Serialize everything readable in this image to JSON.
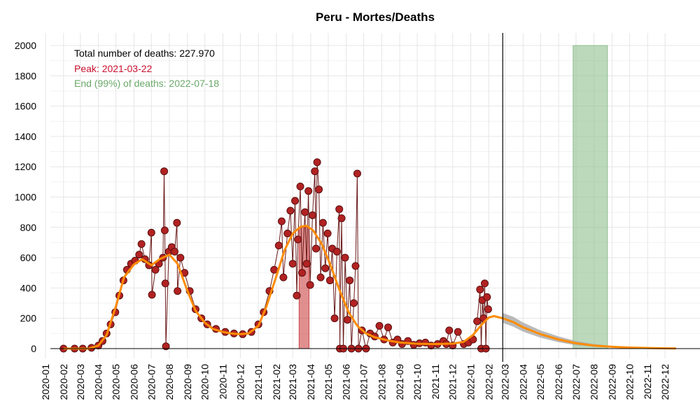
{
  "chart_data": {
    "type": "scatter",
    "title": "Peru - Mortes/Deaths",
    "xlabel": "",
    "ylabel": "",
    "xlim": [
      "2020-01-01",
      "2022-12-31"
    ],
    "ylim": [
      0,
      2000
    ],
    "y_ticks": [
      0,
      200,
      400,
      600,
      800,
      1000,
      1200,
      1400,
      1600,
      1800,
      2000
    ],
    "x_ticks": [
      "2020-01",
      "2020-02",
      "2020-03",
      "2020-04",
      "2020-05",
      "2020-06",
      "2020-07",
      "2020-08",
      "2020-09",
      "2020-10",
      "2020-11",
      "2020-12",
      "2021-01",
      "2021-02",
      "2021-03",
      "2021-04",
      "2021-05",
      "2021-06",
      "2021-07",
      "2021-08",
      "2021-09",
      "2021-10",
      "2021-11",
      "2021-12",
      "2022-01",
      "2022-02",
      "2022-03",
      "2022-04",
      "2022-05",
      "2022-06",
      "2022-07",
      "2022-08",
      "2022-09",
      "2022-10",
      "2022-11",
      "2022-12"
    ],
    "grid": true,
    "annotations": {
      "total": {
        "text": "Total number of deaths: 227.970",
        "color": "#000000"
      },
      "peak": {
        "text": "Peak: 2021-03-22",
        "color": "#c8102e"
      },
      "end": {
        "text": "End (99%) of deaths: 2022-07-18",
        "color": "#6aa86a"
      }
    },
    "current_date": "2022-02-25",
    "peak_band": {
      "start": "2021-03-12",
      "end": "2021-03-29",
      "top": 800,
      "color": "#cc4444"
    },
    "end_band": {
      "start": "2022-06-26",
      "end": "2022-08-24",
      "top": 2000,
      "color": "#8fbf8f"
    },
    "colors": {
      "points": "#b22222",
      "point_edge": "#5a1010",
      "line": "#ff8c00",
      "forecast_band": "#a9a9a9",
      "connector": "#6b1a1a"
    },
    "series": [
      {
        "name": "observed",
        "kind": "points",
        "points": [
          [
            "2020-02-01",
            0
          ],
          [
            "2020-02-20",
            0
          ],
          [
            "2020-03-05",
            0
          ],
          [
            "2020-03-20",
            5
          ],
          [
            "2020-04-01",
            20
          ],
          [
            "2020-04-08",
            50
          ],
          [
            "2020-04-15",
            100
          ],
          [
            "2020-04-22",
            160
          ],
          [
            "2020-04-30",
            240
          ],
          [
            "2020-05-07",
            350
          ],
          [
            "2020-05-14",
            450
          ],
          [
            "2020-05-20",
            520
          ],
          [
            "2020-05-27",
            560
          ],
          [
            "2020-06-03",
            580
          ],
          [
            "2020-06-10",
            620
          ],
          [
            "2020-06-14",
            690
          ],
          [
            "2020-06-20",
            590
          ],
          [
            "2020-06-27",
            550
          ],
          [
            "2020-07-01",
            765
          ],
          [
            "2020-07-02",
            355
          ],
          [
            "2020-07-08",
            520
          ],
          [
            "2020-07-14",
            560
          ],
          [
            "2020-07-21",
            600
          ],
          [
            "2020-07-23",
            1170
          ],
          [
            "2020-07-24",
            780
          ],
          [
            "2020-07-25",
            430
          ],
          [
            "2020-07-26",
            15
          ],
          [
            "2020-07-31",
            640
          ],
          [
            "2020-08-05",
            670
          ],
          [
            "2020-08-10",
            640
          ],
          [
            "2020-08-14",
            830
          ],
          [
            "2020-08-15",
            380
          ],
          [
            "2020-08-20",
            600
          ],
          [
            "2020-08-27",
            500
          ],
          [
            "2020-09-05",
            380
          ],
          [
            "2020-09-15",
            260
          ],
          [
            "2020-09-25",
            200
          ],
          [
            "2020-10-05",
            160
          ],
          [
            "2020-10-20",
            130
          ],
          [
            "2020-11-05",
            110
          ],
          [
            "2020-11-20",
            100
          ],
          [
            "2020-12-05",
            95
          ],
          [
            "2020-12-20",
            110
          ],
          [
            "2021-01-01",
            160
          ],
          [
            "2021-01-10",
            240
          ],
          [
            "2021-01-20",
            380
          ],
          [
            "2021-01-28",
            520
          ],
          [
            "2021-02-05",
            680
          ],
          [
            "2021-02-10",
            840
          ],
          [
            "2021-02-13",
            470
          ],
          [
            "2021-02-20",
            760
          ],
          [
            "2021-02-25",
            910
          ],
          [
            "2021-03-01",
            560
          ],
          [
            "2021-03-05",
            975
          ],
          [
            "2021-03-08",
            350
          ],
          [
            "2021-03-10",
            720
          ],
          [
            "2021-03-14",
            1070
          ],
          [
            "2021-03-17",
            500
          ],
          [
            "2021-03-22",
            900
          ],
          [
            "2021-03-25",
            560
          ],
          [
            "2021-03-28",
            1040
          ],
          [
            "2021-03-31",
            420
          ],
          [
            "2021-04-04",
            880
          ],
          [
            "2021-04-08",
            1170
          ],
          [
            "2021-04-10",
            660
          ],
          [
            "2021-04-12",
            1230
          ],
          [
            "2021-04-15",
            1050
          ],
          [
            "2021-04-18",
            470
          ],
          [
            "2021-04-22",
            830
          ],
          [
            "2021-04-26",
            530
          ],
          [
            "2021-04-30",
            760
          ],
          [
            "2021-05-04",
            450
          ],
          [
            "2021-05-08",
            660
          ],
          [
            "2021-05-12",
            200
          ],
          [
            "2021-05-16",
            640
          ],
          [
            "2021-05-20",
            920
          ],
          [
            "2021-05-21",
            0
          ],
          [
            "2021-05-24",
            860
          ],
          [
            "2021-05-27",
            0
          ],
          [
            "2021-05-30",
            600
          ],
          [
            "2021-06-03",
            190
          ],
          [
            "2021-06-07",
            450
          ],
          [
            "2021-06-10",
            0
          ],
          [
            "2021-06-14",
            300
          ],
          [
            "2021-06-17",
            545
          ],
          [
            "2021-06-20",
            1155
          ],
          [
            "2021-06-22",
            0
          ],
          [
            "2021-06-28",
            120
          ],
          [
            "2021-07-05",
            0
          ],
          [
            "2021-07-12",
            100
          ],
          [
            "2021-07-20",
            80
          ],
          [
            "2021-07-28",
            150
          ],
          [
            "2021-08-05",
            60
          ],
          [
            "2021-08-12",
            140
          ],
          [
            "2021-08-20",
            40
          ],
          [
            "2021-08-28",
            60
          ],
          [
            "2021-09-05",
            30
          ],
          [
            "2021-09-15",
            50
          ],
          [
            "2021-09-25",
            25
          ],
          [
            "2021-10-05",
            35
          ],
          [
            "2021-10-15",
            40
          ],
          [
            "2021-10-25",
            20
          ],
          [
            "2021-11-05",
            30
          ],
          [
            "2021-11-15",
            50
          ],
          [
            "2021-11-20",
            30
          ],
          [
            "2021-11-25",
            120
          ],
          [
            "2021-12-01",
            20
          ],
          [
            "2021-12-10",
            110
          ],
          [
            "2021-12-20",
            30
          ],
          [
            "2021-12-28",
            40
          ],
          [
            "2022-01-05",
            60
          ],
          [
            "2022-01-12",
            180
          ],
          [
            "2022-01-17",
            390
          ],
          [
            "2022-01-19",
            0
          ],
          [
            "2022-01-21",
            320
          ],
          [
            "2022-01-23",
            200
          ],
          [
            "2022-01-25",
            430
          ],
          [
            "2022-01-27",
            0
          ],
          [
            "2022-01-29",
            340
          ],
          [
            "2022-01-31",
            260
          ]
        ]
      },
      {
        "name": "smoothed",
        "kind": "line",
        "points": [
          [
            "2020-02-01",
            0
          ],
          [
            "2020-03-15",
            0
          ],
          [
            "2020-04-01",
            20
          ],
          [
            "2020-04-15",
            90
          ],
          [
            "2020-05-01",
            280
          ],
          [
            "2020-05-15",
            470
          ],
          [
            "2020-06-01",
            555
          ],
          [
            "2020-06-15",
            590
          ],
          [
            "2020-07-01",
            550
          ],
          [
            "2020-07-15",
            590
          ],
          [
            "2020-08-01",
            620
          ],
          [
            "2020-08-15",
            560
          ],
          [
            "2020-09-01",
            380
          ],
          [
            "2020-09-15",
            250
          ],
          [
            "2020-10-01",
            170
          ],
          [
            "2020-10-15",
            130
          ],
          [
            "2020-11-01",
            110
          ],
          [
            "2020-11-15",
            100
          ],
          [
            "2020-12-01",
            95
          ],
          [
            "2020-12-15",
            100
          ],
          [
            "2021-01-01",
            150
          ],
          [
            "2021-01-15",
            280
          ],
          [
            "2021-02-01",
            480
          ],
          [
            "2021-02-15",
            650
          ],
          [
            "2021-03-01",
            760
          ],
          [
            "2021-03-15",
            805
          ],
          [
            "2021-03-25",
            810
          ],
          [
            "2021-04-05",
            780
          ],
          [
            "2021-04-20",
            690
          ],
          [
            "2021-05-05",
            550
          ],
          [
            "2021-05-20",
            390
          ],
          [
            "2021-06-05",
            240
          ],
          [
            "2021-06-20",
            150
          ],
          [
            "2021-07-05",
            100
          ],
          [
            "2021-07-20",
            75
          ],
          [
            "2021-08-10",
            55
          ],
          [
            "2021-09-01",
            40
          ],
          [
            "2021-10-01",
            32
          ],
          [
            "2021-11-01",
            30
          ],
          [
            "2021-12-01",
            33
          ],
          [
            "2021-12-20",
            45
          ],
          [
            "2022-01-05",
            90
          ],
          [
            "2022-01-20",
            160
          ],
          [
            "2022-02-01",
            205
          ],
          [
            "2022-02-10",
            215
          ],
          [
            "2022-02-25",
            200
          ]
        ]
      },
      {
        "name": "forecast",
        "kind": "line",
        "points": [
          [
            "2022-02-25",
            200
          ],
          [
            "2022-03-15",
            175
          ],
          [
            "2022-04-01",
            140
          ],
          [
            "2022-05-01",
            95
          ],
          [
            "2022-06-01",
            60
          ],
          [
            "2022-07-01",
            35
          ],
          [
            "2022-08-01",
            20
          ],
          [
            "2022-09-01",
            12
          ],
          [
            "2022-10-01",
            7
          ],
          [
            "2022-11-01",
            4
          ],
          [
            "2022-12-01",
            2
          ],
          [
            "2022-12-20",
            1
          ]
        ],
        "band_upper": [
          [
            "2022-02-25",
            235
          ],
          [
            "2022-03-15",
            210
          ],
          [
            "2022-04-01",
            172
          ],
          [
            "2022-05-01",
            120
          ],
          [
            "2022-06-01",
            80
          ],
          [
            "2022-07-01",
            50
          ],
          [
            "2022-08-01",
            30
          ],
          [
            "2022-09-01",
            18
          ],
          [
            "2022-10-01",
            11
          ],
          [
            "2022-11-01",
            6
          ],
          [
            "2022-12-01",
            3
          ],
          [
            "2022-12-20",
            2
          ]
        ],
        "band_lower": [
          [
            "2022-02-25",
            170
          ],
          [
            "2022-03-15",
            145
          ],
          [
            "2022-04-01",
            112
          ],
          [
            "2022-05-01",
            72
          ],
          [
            "2022-06-01",
            42
          ],
          [
            "2022-07-01",
            22
          ],
          [
            "2022-08-01",
            12
          ],
          [
            "2022-09-01",
            7
          ],
          [
            "2022-10-01",
            4
          ],
          [
            "2022-11-01",
            2
          ],
          [
            "2022-12-01",
            1
          ],
          [
            "2022-12-20",
            0
          ]
        ]
      }
    ]
  }
}
